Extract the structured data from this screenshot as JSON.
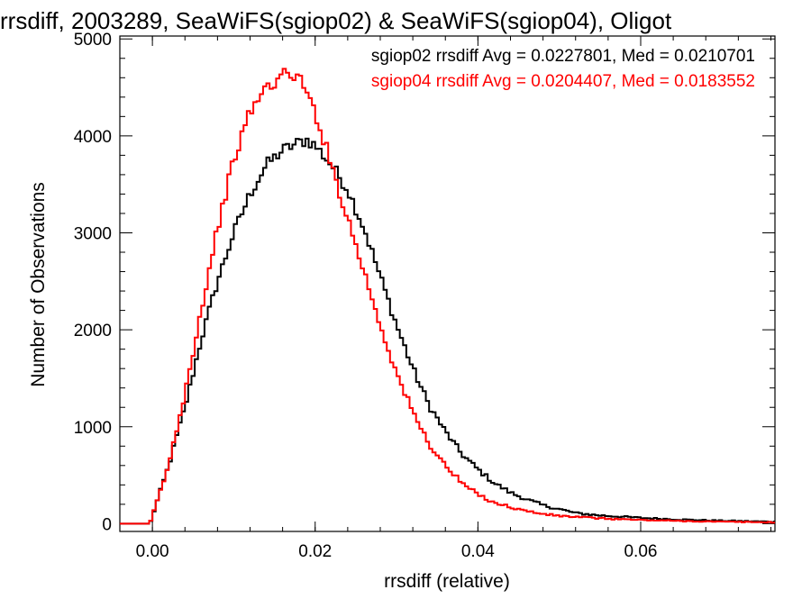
{
  "chart_data": {
    "type": "line",
    "title": "rrsdiff, 2003289, SeaWiFS(sgiop02) & SeaWiFS(sgiop04), Oligot",
    "xlabel": "rrsdiff (relative)",
    "ylabel": "Number of Observations",
    "xlim": [
      -0.004,
      0.0765
    ],
    "ylim": [
      -80,
      5030
    ],
    "x_ticks": [
      0.0,
      0.02,
      0.04,
      0.06
    ],
    "x_tick_labels": [
      "0.00",
      "0.02",
      "0.04",
      "0.06"
    ],
    "y_ticks": [
      0,
      1000,
      2000,
      3000,
      4000,
      5000
    ],
    "y_tick_labels": [
      "0",
      "1000",
      "2000",
      "3000",
      "4000",
      "5000"
    ],
    "grid": false,
    "legend_position": "top-right",
    "series": [
      {
        "name": "sgiop02",
        "color": "#000000",
        "x": [
          -0.004,
          -0.0003,
          0.0,
          0.002,
          0.004,
          0.006,
          0.008,
          0.01,
          0.012,
          0.014,
          0.016,
          0.018,
          0.019,
          0.02,
          0.022,
          0.024,
          0.026,
          0.028,
          0.03,
          0.032,
          0.034,
          0.036,
          0.038,
          0.04,
          0.042,
          0.044,
          0.046,
          0.048,
          0.05,
          0.052,
          0.055,
          0.06,
          0.065,
          0.07,
          0.0765
        ],
        "y": [
          0,
          0,
          80,
          600,
          1200,
          1900,
          2500,
          3000,
          3400,
          3700,
          3850,
          3930,
          3960,
          3900,
          3700,
          3450,
          3050,
          2550,
          2050,
          1600,
          1220,
          950,
          720,
          560,
          420,
          320,
          250,
          190,
          150,
          110,
          85,
          60,
          42,
          30,
          20
        ]
      },
      {
        "name": "sgiop04",
        "color": "#ff0000",
        "x": [
          -0.004,
          -0.0003,
          0.0,
          0.002,
          0.004,
          0.006,
          0.008,
          0.01,
          0.012,
          0.014,
          0.016,
          0.017,
          0.018,
          0.02,
          0.022,
          0.024,
          0.026,
          0.028,
          0.03,
          0.032,
          0.034,
          0.036,
          0.038,
          0.04,
          0.042,
          0.044,
          0.046,
          0.048,
          0.05,
          0.055,
          0.06,
          0.065,
          0.07,
          0.0765
        ],
        "y": [
          0,
          0,
          80,
          600,
          1350,
          2200,
          3050,
          3750,
          4250,
          4500,
          4620,
          4650,
          4600,
          4250,
          3700,
          3150,
          2600,
          2050,
          1550,
          1150,
          820,
          600,
          420,
          300,
          220,
          170,
          130,
          100,
          80,
          55,
          38,
          28,
          20,
          14
        ]
      }
    ],
    "annotations": [
      "sgiop02 rrsdiff Avg = 0.0227801, Med = 0.0210701",
      "sgiop04 rrsdiff Avg = 0.0204407, Med = 0.0183552"
    ]
  }
}
